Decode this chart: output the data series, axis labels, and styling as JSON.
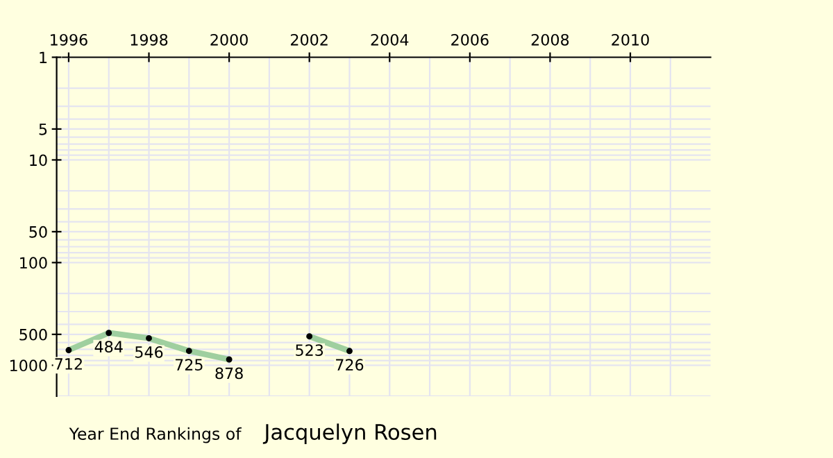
{
  "chart_data": {
    "type": "line",
    "title": "Year End Rankings of",
    "subtitle": "Jacquelyn Rosen",
    "x": [
      1996,
      1997,
      1998,
      1999,
      2000,
      2001,
      2002,
      2003
    ],
    "series": [
      {
        "color": "#9fcf9f",
        "values": [
          712,
          484,
          546,
          725,
          878,
          null,
          523,
          726
        ]
      }
    ],
    "xlim": [
      1995.7,
      2012
    ],
    "xticks": [
      1996,
      1998,
      2000,
      2002,
      2004,
      2006,
      2008,
      2010
    ],
    "ylim": [
      2000,
      1
    ],
    "yticks": [
      1,
      5,
      10,
      50,
      100,
      500,
      1000
    ],
    "log": true,
    "grid": true,
    "marker": "circle",
    "line_style": "solid",
    "data_labels": true
  }
}
